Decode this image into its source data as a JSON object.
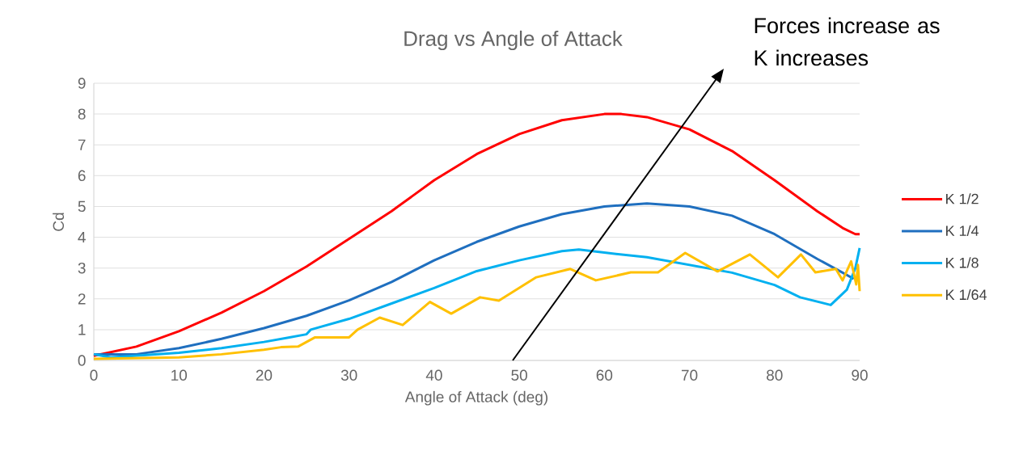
{
  "chart_data": {
    "type": "line",
    "title": "Drag vs Angle of Attack",
    "xlabel": "Angle of Attack (deg)",
    "ylabel": "Cd",
    "annotations": [
      "Forces increase as K increases"
    ],
    "xlim": [
      0,
      90
    ],
    "ylim": [
      0,
      9
    ],
    "xticks": [
      0,
      10,
      20,
      30,
      40,
      50,
      60,
      70,
      80,
      90
    ],
    "yticks": [
      0,
      1,
      2,
      3,
      4,
      5,
      6,
      7,
      8,
      9
    ],
    "grid": "y",
    "legend": "right",
    "series": [
      {
        "name": "K 1/2",
        "color": "#ff0000",
        "x": [
          0,
          5,
          10,
          15,
          20,
          25,
          30,
          35,
          40,
          45,
          50,
          55,
          60,
          62,
          65,
          70,
          75,
          80,
          85,
          88,
          89.5,
          90
        ],
        "values": [
          0.15,
          0.45,
          0.95,
          1.55,
          2.25,
          3.05,
          3.95,
          4.85,
          5.85,
          6.7,
          7.35,
          7.8,
          8.0,
          8.0,
          7.9,
          7.5,
          6.8,
          5.85,
          4.85,
          4.3,
          4.1,
          4.1
        ]
      },
      {
        "name": "K 1/4",
        "color": "#1f6fbf",
        "x": [
          0,
          5,
          10,
          15,
          20,
          25,
          30,
          35,
          40,
          45,
          50,
          55,
          60,
          65,
          70,
          75,
          80,
          85,
          88,
          89.3
        ],
        "values": [
          0.2,
          0.2,
          0.4,
          0.7,
          1.05,
          1.45,
          1.95,
          2.55,
          3.25,
          3.85,
          4.35,
          4.75,
          5.0,
          5.1,
          5.0,
          4.7,
          4.1,
          3.3,
          2.85,
          2.65
        ]
      },
      {
        "name": "K 1/8",
        "color": "#00b0f0",
        "x": [
          0,
          2,
          10,
          15,
          20,
          23,
          25,
          25.5,
          30,
          35,
          40,
          45,
          50,
          55,
          57,
          60,
          65,
          70,
          75,
          80,
          83,
          86.6,
          88.5,
          89.5,
          90
        ],
        "values": [
          0.2,
          0.1,
          0.25,
          0.4,
          0.6,
          0.75,
          0.85,
          1.0,
          1.35,
          1.85,
          2.35,
          2.9,
          3.25,
          3.55,
          3.6,
          3.5,
          3.35,
          3.1,
          2.85,
          2.45,
          2.05,
          1.8,
          2.3,
          3.0,
          3.65
        ]
      },
      {
        "name": "K 1/64",
        "color": "#ffc000",
        "x": [
          0,
          10,
          15,
          20,
          22,
          24,
          26,
          30,
          31,
          33.6,
          36.3,
          39.5,
          42,
          45.4,
          47.6,
          52,
          56,
          59,
          63.1,
          66.3,
          69.5,
          73.3,
          77.1,
          80.4,
          83.1,
          84.8,
          87.2,
          88,
          89,
          89.6,
          89.8,
          90
        ],
        "values": [
          0.05,
          0.1,
          0.2,
          0.35,
          0.43,
          0.45,
          0.75,
          0.75,
          1.0,
          1.39,
          1.15,
          1.9,
          1.52,
          2.05,
          1.94,
          2.7,
          2.97,
          2.6,
          2.86,
          2.86,
          3.49,
          2.89,
          3.44,
          2.7,
          3.44,
          2.86,
          2.97,
          2.6,
          3.22,
          2.47,
          3.1,
          2.25
        ]
      }
    ]
  }
}
